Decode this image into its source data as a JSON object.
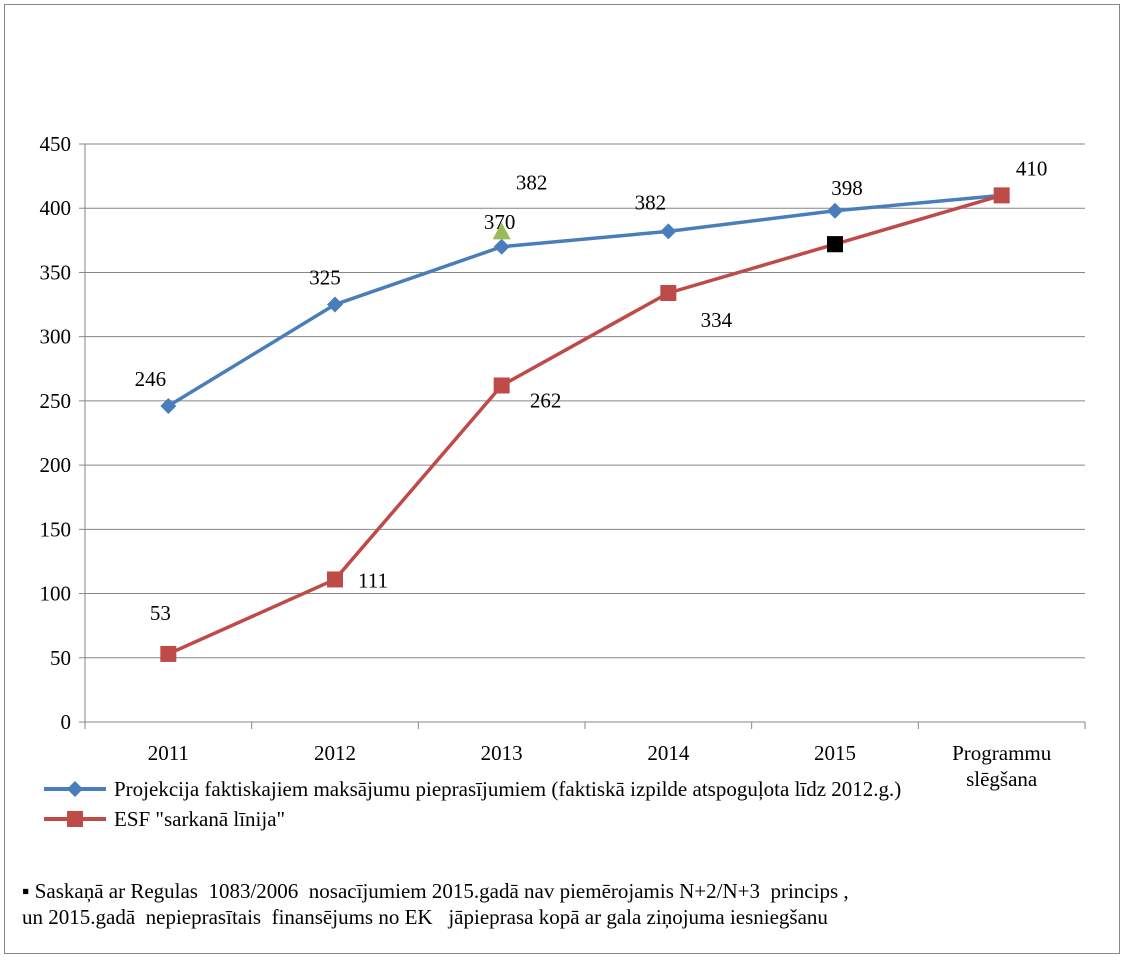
{
  "chart_data": {
    "type": "line",
    "categories": [
      "2011",
      "2012",
      "2013",
      "2014",
      "2015",
      "Programmu\nslēgšana"
    ],
    "ylim": [
      0,
      450
    ],
    "yticks": [
      0,
      50,
      100,
      150,
      200,
      250,
      300,
      350,
      400,
      450
    ],
    "grid": true,
    "series": [
      {
        "name": "Projekcija faktiskajiem maksājumu pieprasījumiem (faktiskā izpilde atspoguļota līdz 2012.g.)",
        "values": [
          246,
          325,
          370,
          382,
          398,
          410
        ],
        "labels": [
          "246",
          "325",
          "370",
          "382",
          "398",
          ""
        ],
        "color": "#4a7ebb",
        "marker": "diamond"
      },
      {
        "name": "ESF \"sarkanā līnija\"",
        "values": [
          53,
          111,
          262,
          334,
          372,
          410
        ],
        "labels": [
          "53",
          "111",
          "262",
          "334",
          "",
          "410"
        ],
        "color": "#be4b48",
        "marker": "square"
      }
    ],
    "extra_points": [
      {
        "category_index": 2,
        "value": 382,
        "label": "382",
        "color": "#9bbb59",
        "marker": "triangle"
      },
      {
        "category_index": 4,
        "value": 372,
        "label": "",
        "color": "#000000",
        "marker": "square"
      }
    ],
    "legend_position": "bottom-left"
  },
  "note": "▪ Saskaņā ar Regulas  1083/2006  nosacījumiem 2015.gadā nav piemērojamis N+2/N+3  princips ,\nun 2015.gadā  nepieprasītais  finansējums no EK   jāpieprasa kopā ar gala ziņojuma iesniegšanu"
}
